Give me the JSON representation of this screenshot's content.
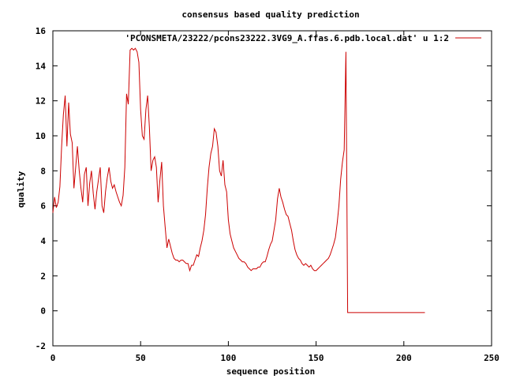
{
  "chart_data": {
    "type": "line",
    "title": "consensus based quality prediction",
    "xlabel": "sequence position",
    "ylabel": "quality",
    "xlim": [
      0,
      250
    ],
    "ylim": [
      -2,
      16
    ],
    "xticks": [
      0,
      50,
      100,
      150,
      200,
      250
    ],
    "yticks": [
      -2,
      0,
      2,
      4,
      6,
      8,
      10,
      12,
      14,
      16
    ],
    "grid": false,
    "legend_position": "top-right",
    "series": [
      {
        "name": "'PCONSMETA/23222/pcons23222.3VG9_A.ffas.6.pdb.local.dat' u 1:2",
        "color": "#cc0000",
        "points": [
          [
            0,
            5.6
          ],
          [
            1,
            6.5
          ],
          [
            2,
            5.9
          ],
          [
            3,
            6.2
          ],
          [
            4,
            7.1
          ],
          [
            5,
            9.4
          ],
          [
            6,
            11.2
          ],
          [
            7,
            12.3
          ],
          [
            8,
            9.4
          ],
          [
            9,
            11.9
          ],
          [
            10,
            10.1
          ],
          [
            11,
            9.6
          ],
          [
            12,
            7.0
          ],
          [
            13,
            8.2
          ],
          [
            14,
            9.4
          ],
          [
            15,
            8.0
          ],
          [
            16,
            7.0
          ],
          [
            17,
            6.2
          ],
          [
            18,
            7.8
          ],
          [
            19,
            8.2
          ],
          [
            20,
            6.0
          ],
          [
            21,
            7.3
          ],
          [
            22,
            8.0
          ],
          [
            23,
            6.7
          ],
          [
            24,
            5.8
          ],
          [
            25,
            6.8
          ],
          [
            26,
            7.5
          ],
          [
            27,
            8.2
          ],
          [
            28,
            6.0
          ],
          [
            29,
            5.6
          ],
          [
            30,
            6.8
          ],
          [
            31,
            7.6
          ],
          [
            32,
            8.2
          ],
          [
            33,
            7.4
          ],
          [
            34,
            7.0
          ],
          [
            35,
            7.2
          ],
          [
            36,
            6.8
          ],
          [
            37,
            6.5
          ],
          [
            38,
            6.2
          ],
          [
            39,
            6.0
          ],
          [
            40,
            6.6
          ],
          [
            41,
            8.2
          ],
          [
            42,
            12.4
          ],
          [
            43,
            11.8
          ],
          [
            44,
            14.9
          ],
          [
            45,
            15.0
          ],
          [
            46,
            14.9
          ],
          [
            47,
            15.0
          ],
          [
            48,
            14.8
          ],
          [
            49,
            14.2
          ],
          [
            50,
            11.5
          ],
          [
            51,
            10.0
          ],
          [
            52,
            9.8
          ],
          [
            53,
            11.5
          ],
          [
            54,
            12.3
          ],
          [
            55,
            10.5
          ],
          [
            56,
            8.0
          ],
          [
            57,
            8.6
          ],
          [
            58,
            8.8
          ],
          [
            59,
            8.2
          ],
          [
            60,
            6.2
          ],
          [
            61,
            7.5
          ],
          [
            62,
            8.5
          ],
          [
            63,
            6.0
          ],
          [
            64,
            4.8
          ],
          [
            65,
            3.6
          ],
          [
            66,
            4.1
          ],
          [
            67,
            3.7
          ],
          [
            68,
            3.3
          ],
          [
            69,
            3.0
          ],
          [
            70,
            2.9
          ],
          [
            71,
            2.9
          ],
          [
            72,
            2.8
          ],
          [
            73,
            2.9
          ],
          [
            74,
            2.9
          ],
          [
            75,
            2.8
          ],
          [
            76,
            2.7
          ],
          [
            77,
            2.7
          ],
          [
            78,
            2.3
          ],
          [
            79,
            2.6
          ],
          [
            80,
            2.6
          ],
          [
            81,
            2.9
          ],
          [
            82,
            3.2
          ],
          [
            83,
            3.1
          ],
          [
            84,
            3.6
          ],
          [
            85,
            4.0
          ],
          [
            86,
            4.6
          ],
          [
            87,
            5.5
          ],
          [
            88,
            7.0
          ],
          [
            89,
            8.2
          ],
          [
            90,
            9.0
          ],
          [
            91,
            9.4
          ],
          [
            92,
            10.4
          ],
          [
            93,
            10.2
          ],
          [
            94,
            9.4
          ],
          [
            95,
            8.0
          ],
          [
            96,
            7.7
          ],
          [
            97,
            8.6
          ],
          [
            98,
            7.2
          ],
          [
            99,
            6.8
          ],
          [
            100,
            5.2
          ],
          [
            101,
            4.4
          ],
          [
            102,
            4.0
          ],
          [
            103,
            3.6
          ],
          [
            104,
            3.4
          ],
          [
            105,
            3.2
          ],
          [
            106,
            3.0
          ],
          [
            107,
            2.9
          ],
          [
            108,
            2.8
          ],
          [
            109,
            2.8
          ],
          [
            110,
            2.7
          ],
          [
            111,
            2.5
          ],
          [
            112,
            2.4
          ],
          [
            113,
            2.3
          ],
          [
            114,
            2.4
          ],
          [
            115,
            2.4
          ],
          [
            116,
            2.4
          ],
          [
            117,
            2.5
          ],
          [
            118,
            2.5
          ],
          [
            119,
            2.7
          ],
          [
            120,
            2.8
          ],
          [
            121,
            2.8
          ],
          [
            122,
            3.1
          ],
          [
            123,
            3.5
          ],
          [
            124,
            3.8
          ],
          [
            125,
            4.0
          ],
          [
            126,
            4.6
          ],
          [
            127,
            5.2
          ],
          [
            128,
            6.4
          ],
          [
            129,
            7.0
          ],
          [
            130,
            6.5
          ],
          [
            131,
            6.2
          ],
          [
            132,
            5.8
          ],
          [
            133,
            5.5
          ],
          [
            134,
            5.4
          ],
          [
            135,
            5.0
          ],
          [
            136,
            4.6
          ],
          [
            137,
            4.0
          ],
          [
            138,
            3.5
          ],
          [
            139,
            3.2
          ],
          [
            140,
            3.0
          ],
          [
            141,
            2.9
          ],
          [
            142,
            2.7
          ],
          [
            143,
            2.6
          ],
          [
            144,
            2.7
          ],
          [
            145,
            2.6
          ],
          [
            146,
            2.5
          ],
          [
            147,
            2.6
          ],
          [
            148,
            2.4
          ],
          [
            149,
            2.3
          ],
          [
            150,
            2.3
          ],
          [
            151,
            2.4
          ],
          [
            152,
            2.5
          ],
          [
            153,
            2.6
          ],
          [
            154,
            2.7
          ],
          [
            155,
            2.8
          ],
          [
            156,
            2.9
          ],
          [
            157,
            3.0
          ],
          [
            158,
            3.2
          ],
          [
            159,
            3.5
          ],
          [
            160,
            3.8
          ],
          [
            161,
            4.2
          ],
          [
            162,
            5.0
          ],
          [
            163,
            6.0
          ],
          [
            164,
            7.5
          ],
          [
            165,
            8.5
          ],
          [
            166,
            9.2
          ],
          [
            167,
            14.8
          ],
          [
            168,
            -0.1
          ],
          [
            169,
            -0.1
          ],
          [
            170,
            -0.1
          ],
          [
            180,
            -0.1
          ],
          [
            190,
            -0.1
          ],
          [
            200,
            -0.1
          ],
          [
            210,
            -0.1
          ],
          [
            212,
            -0.1
          ]
        ]
      }
    ]
  }
}
